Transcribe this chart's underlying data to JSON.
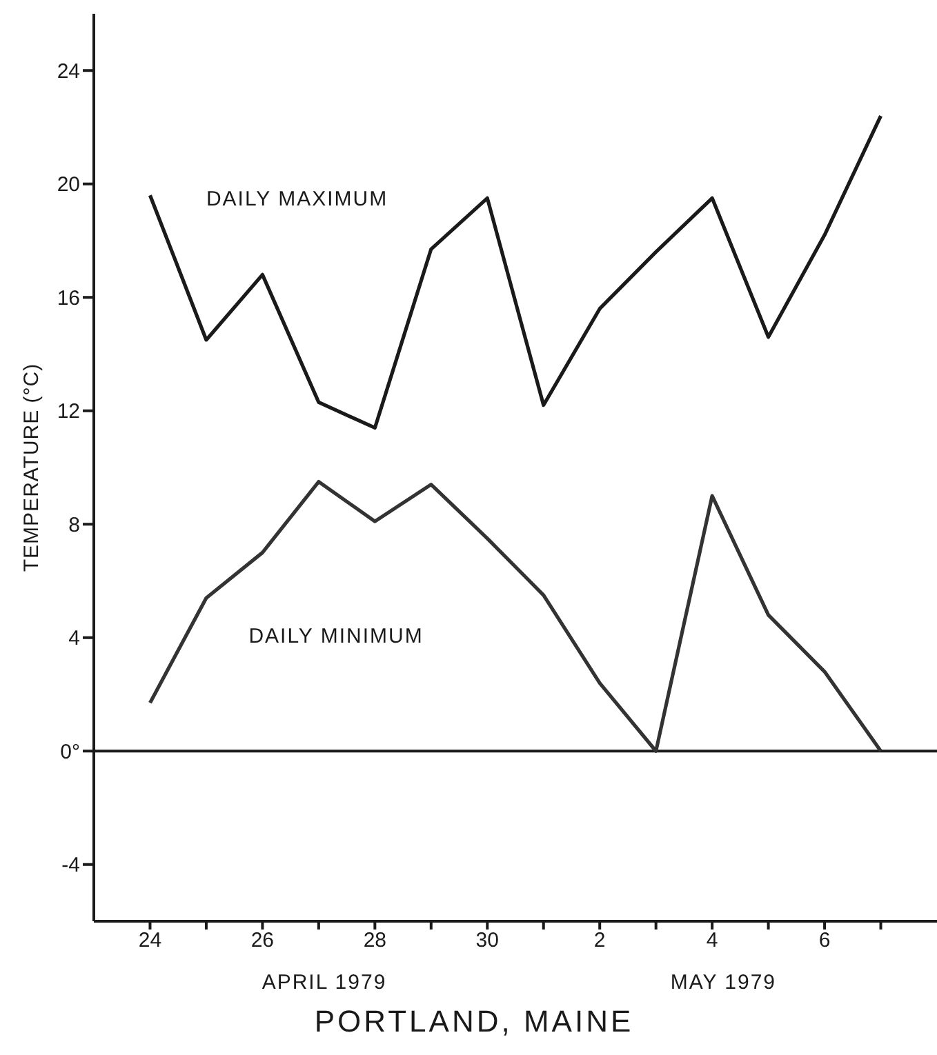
{
  "chart_data": {
    "type": "line",
    "xlabel": "PORTLAND, MAINE",
    "ylabel": "TEMPERATURE (°C)",
    "x": [
      "--04-24",
      "--04-25",
      "--04-26",
      "--04-27",
      "--04-28",
      "--04-29",
      "--04-30",
      "--05-01",
      "--05-02",
      "--05-03",
      "--05-04",
      "--05-05",
      "--05-06",
      "--05-07"
    ],
    "series": [
      {
        "name": "DAILY MAXIMUM",
        "color": "#1a1a1a",
        "values": [
          19.6,
          14.5,
          16.8,
          12.3,
          11.4,
          17.7,
          19.5,
          12.2,
          15.6,
          17.6,
          19.5,
          14.6,
          18.2,
          22.4
        ]
      },
      {
        "name": "DAILY MINIMUM",
        "color": "#333333",
        "values": [
          1.7,
          5.4,
          7.0,
          9.5,
          8.1,
          9.4,
          7.5,
          5.5,
          2.4,
          0,
          9.0,
          4.8,
          2.8,
          0
        ]
      }
    ],
    "xlim": [
      "--04-23",
      "--05-08"
    ],
    "xticks": [
      {
        "value": "--04-24",
        "label": "24"
      },
      {
        "value": "--04-25",
        "label": null
      },
      {
        "value": "--04-26",
        "label": "26"
      },
      {
        "value": "--04-27",
        "label": null
      },
      {
        "value": "--04-28",
        "label": "28"
      },
      {
        "value": "--04-29",
        "label": null
      },
      {
        "value": "--04-30",
        "label": "30"
      },
      {
        "value": "--05-01",
        "label": null
      },
      {
        "value": "--05-02",
        "label": "2"
      },
      {
        "value": "--05-03",
        "label": null
      },
      {
        "value": "--05-04",
        "label": "4"
      },
      {
        "value": "--05-05",
        "label": null
      },
      {
        "value": "--05-06",
        "label": "6"
      },
      {
        "value": "--05-07",
        "label": null
      }
    ],
    "ylim": [
      -6,
      26
    ],
    "yticks": [
      -4,
      {
        "value": 0,
        "label": "0°"
      },
      4,
      8,
      12,
      16,
      20,
      24
    ],
    "ref_lines": [
      {
        "axis": "y",
        "value": 0,
        "color": "#1a1a1a"
      }
    ],
    "annotations": [
      "APRIL 1979",
      "MAY 1979"
    ],
    "grid": false,
    "marker": "none",
    "line_style": "solid"
  }
}
